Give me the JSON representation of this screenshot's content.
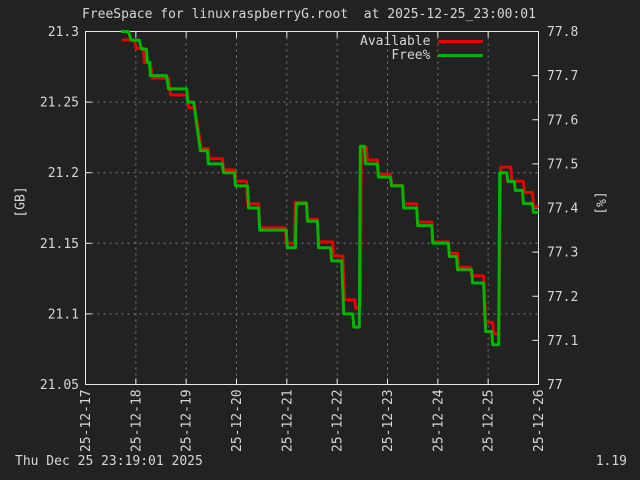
{
  "title": "FreeSpace for linuxraspberryG.root  at 2025-12-25_23:00:01",
  "footer": {
    "timestamp": "Thu Dec 25 23:19:01 2025",
    "version": "1.19"
  },
  "colors": {
    "background": "#222222",
    "border": "#e8e8e8",
    "grid": "#7d7d7d",
    "text": "#d6d6d6",
    "available_line": "#e60000",
    "free_pct_line": "#00b400"
  },
  "chart_data": {
    "type": "line",
    "title": "FreeSpace for linuxraspberryG.root  at 2025-12-25_23:00:01",
    "grid": true,
    "legend_position": "top-right-inside",
    "x_axis": {
      "range_days": [
        17,
        26
      ],
      "tick_labels": [
        "25-12-17",
        "25-12-18",
        "25-12-19",
        "25-12-20",
        "25-12-21",
        "25-12-22",
        "25-12-23",
        "25-12-24",
        "25-12-25",
        "25-12-26"
      ],
      "tick_days": [
        17,
        18,
        19,
        20,
        21,
        22,
        23,
        24,
        25,
        26
      ]
    },
    "y_axis_left": {
      "label": "[GB]",
      "range": [
        21.05,
        21.3
      ],
      "ticks": [
        21.05,
        21.1,
        21.15,
        21.2,
        21.25,
        21.3
      ],
      "tick_labels": [
        "21.05",
        "21.1",
        "21.15",
        "21.2",
        "21.25",
        "21.3"
      ]
    },
    "y_axis_right": {
      "label": "[%]",
      "range": [
        77,
        77.8
      ],
      "ticks": [
        77,
        77.1,
        77.2,
        77.3,
        77.4,
        77.5,
        77.6,
        77.7,
        77.8
      ],
      "tick_labels": [
        "77",
        "77.1",
        "77.2",
        "77.3",
        "77.4",
        "77.5",
        "77.6",
        "77.7",
        "77.8"
      ]
    },
    "series": [
      {
        "name": "Available",
        "axis": "left",
        "unit": "GB",
        "color": "#e60000",
        "levels": [
          {
            "d0": 17.72,
            "d1": 17.97,
            "v": 21.294
          },
          {
            "d0": 18.01,
            "d1": 18.15,
            "v": 21.288
          },
          {
            "d0": 18.17,
            "d1": 18.29,
            "v": 21.278
          },
          {
            "d0": 18.33,
            "d1": 18.65,
            "v": 21.267
          },
          {
            "d0": 18.69,
            "d1": 19.03,
            "v": 21.255
          },
          {
            "d0": 19.05,
            "d1": 19.17,
            "v": 21.246
          },
          {
            "d0": 19.3,
            "d1": 19.44,
            "v": 21.217
          },
          {
            "d0": 19.46,
            "d1": 19.72,
            "v": 21.21
          },
          {
            "d0": 19.74,
            "d1": 19.96,
            "v": 21.202
          },
          {
            "d0": 19.98,
            "d1": 20.2,
            "v": 21.194
          },
          {
            "d0": 20.22,
            "d1": 20.44,
            "v": 21.178
          },
          {
            "d0": 20.46,
            "d1": 20.97,
            "v": 21.161
          },
          {
            "d0": 20.99,
            "d1": 21.15,
            "v": 21.15
          },
          {
            "d0": 21.17,
            "d1": 21.39,
            "v": 21.179
          },
          {
            "d0": 21.41,
            "d1": 21.61,
            "v": 21.167
          },
          {
            "d0": 21.63,
            "d1": 21.91,
            "v": 21.151
          },
          {
            "d0": 21.93,
            "d1": 22.11,
            "v": 21.141
          },
          {
            "d0": 22.15,
            "d1": 22.35,
            "v": 21.11
          },
          {
            "d0": 22.37,
            "d1": 22.46,
            "v": 21.104
          },
          {
            "d0": 22.48,
            "d1": 22.58,
            "v": 21.218
          },
          {
            "d0": 22.6,
            "d1": 22.8,
            "v": 21.209
          },
          {
            "d0": 22.82,
            "d1": 23.06,
            "v": 21.199
          },
          {
            "d0": 23.08,
            "d1": 23.3,
            "v": 21.191
          },
          {
            "d0": 23.32,
            "d1": 23.58,
            "v": 21.178
          },
          {
            "d0": 23.6,
            "d1": 23.88,
            "v": 21.165
          },
          {
            "d0": 23.9,
            "d1": 24.21,
            "v": 21.151
          },
          {
            "d0": 24.23,
            "d1": 24.39,
            "v": 21.143
          },
          {
            "d0": 24.41,
            "d1": 24.65,
            "v": 21.133
          },
          {
            "d0": 24.67,
            "d1": 24.91,
            "v": 21.127
          },
          {
            "d0": 24.95,
            "d1": 25.09,
            "v": 21.094
          },
          {
            "d0": 25.11,
            "d1": 25.21,
            "v": 21.086
          },
          {
            "d0": 25.25,
            "d1": 25.45,
            "v": 21.204
          },
          {
            "d0": 25.47,
            "d1": 25.7,
            "v": 21.194
          },
          {
            "d0": 25.72,
            "d1": 25.88,
            "v": 21.186
          },
          {
            "d0": 25.9,
            "d1": 26.0,
            "v": 21.176
          }
        ]
      },
      {
        "name": "Free%",
        "axis": "right",
        "unit": "%",
        "color": "#00b400",
        "levels": [
          {
            "d0": 17.7,
            "d1": 17.85,
            "v": 77.8
          },
          {
            "d0": 17.91,
            "d1": 18.07,
            "v": 77.78
          },
          {
            "d0": 18.11,
            "d1": 18.21,
            "v": 77.76
          },
          {
            "d0": 18.23,
            "d1": 18.27,
            "v": 77.73
          },
          {
            "d0": 18.29,
            "d1": 18.61,
            "v": 77.7
          },
          {
            "d0": 18.65,
            "d1": 19.01,
            "v": 77.67
          },
          {
            "d0": 19.03,
            "d1": 19.15,
            "v": 77.64
          },
          {
            "d0": 19.28,
            "d1": 19.42,
            "v": 77.53
          },
          {
            "d0": 19.44,
            "d1": 19.72,
            "v": 77.5
          },
          {
            "d0": 19.74,
            "d1": 19.96,
            "v": 77.48
          },
          {
            "d0": 19.98,
            "d1": 20.22,
            "v": 77.45
          },
          {
            "d0": 20.24,
            "d1": 20.44,
            "v": 77.4
          },
          {
            "d0": 20.46,
            "d1": 20.99,
            "v": 77.35
          },
          {
            "d0": 21.01,
            "d1": 21.17,
            "v": 77.31
          },
          {
            "d0": 21.19,
            "d1": 21.39,
            "v": 77.41
          },
          {
            "d0": 21.41,
            "d1": 21.61,
            "v": 77.37
          },
          {
            "d0": 21.63,
            "d1": 21.87,
            "v": 77.31
          },
          {
            "d0": 21.89,
            "d1": 22.09,
            "v": 77.28
          },
          {
            "d0": 22.13,
            "d1": 22.31,
            "v": 77.16
          },
          {
            "d0": 22.33,
            "d1": 22.44,
            "v": 77.13
          },
          {
            "d0": 22.46,
            "d1": 22.54,
            "v": 77.54
          },
          {
            "d0": 22.56,
            "d1": 22.8,
            "v": 77.5
          },
          {
            "d0": 22.82,
            "d1": 23.06,
            "v": 77.47
          },
          {
            "d0": 23.08,
            "d1": 23.3,
            "v": 77.45
          },
          {
            "d0": 23.32,
            "d1": 23.58,
            "v": 77.4
          },
          {
            "d0": 23.6,
            "d1": 23.88,
            "v": 77.36
          },
          {
            "d0": 23.9,
            "d1": 24.21,
            "v": 77.32
          },
          {
            "d0": 24.23,
            "d1": 24.37,
            "v": 77.29
          },
          {
            "d0": 24.39,
            "d1": 24.67,
            "v": 77.26
          },
          {
            "d0": 24.69,
            "d1": 24.91,
            "v": 77.23
          },
          {
            "d0": 24.95,
            "d1": 25.07,
            "v": 77.12
          },
          {
            "d0": 25.09,
            "d1": 25.21,
            "v": 77.09
          },
          {
            "d0": 25.23,
            "d1": 25.37,
            "v": 77.48
          },
          {
            "d0": 25.39,
            "d1": 25.52,
            "v": 77.46
          },
          {
            "d0": 25.54,
            "d1": 25.68,
            "v": 77.44
          },
          {
            "d0": 25.7,
            "d1": 25.88,
            "v": 77.41
          },
          {
            "d0": 25.9,
            "d1": 26.0,
            "v": 77.39
          }
        ]
      }
    ]
  },
  "legend": [
    {
      "label": "Available",
      "series": 0
    },
    {
      "label": "Free%",
      "series": 1
    }
  ]
}
